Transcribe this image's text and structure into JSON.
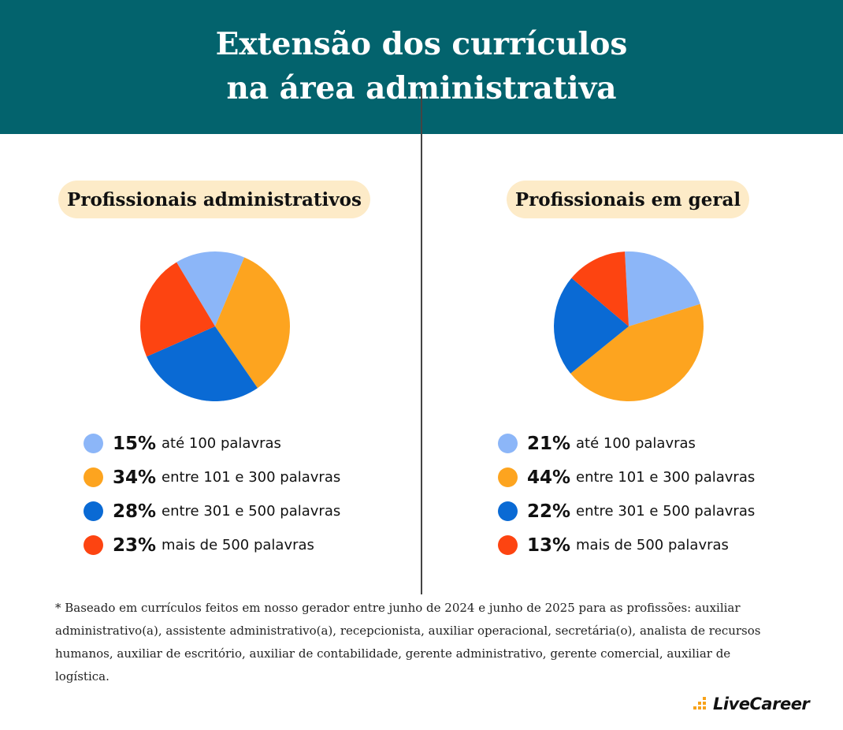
{
  "title": {
    "line1": "Extensão dos currículos",
    "line2": "na área administrativa"
  },
  "colors": {
    "header_bg": "#03636d",
    "pill_bg": "#fdebc8",
    "light_blue": "#8cb6f8",
    "orange": "#fda41f",
    "blue": "#0a6ad4",
    "red_orange": "#fd4411"
  },
  "chart_data": [
    {
      "type": "pie",
      "title": "Profissionais administrativos",
      "slices": [
        {
          "label": "até 100 palavras",
          "value": 15,
          "display": "15%",
          "color": "#8cb6f8"
        },
        {
          "label": "entre 101 e 300 palavras",
          "value": 34,
          "display": "34%",
          "color": "#fda41f"
        },
        {
          "label": "entre 301 e 500 palavras",
          "value": 28,
          "display": "28%",
          "color": "#0a6ad4"
        },
        {
          "label": "mais de 500 palavras",
          "value": 23,
          "display": "23%",
          "color": "#fd4411"
        }
      ]
    },
    {
      "type": "pie",
      "title": "Profissionais em geral",
      "slices": [
        {
          "label": "até 100 palavras",
          "value": 21,
          "display": "21%",
          "color": "#8cb6f8"
        },
        {
          "label": "entre 101 e 300 palavras",
          "value": 44,
          "display": "44%",
          "color": "#fda41f"
        },
        {
          "label": "entre 301 e 500 palavras",
          "value": 22,
          "display": "22%",
          "color": "#0a6ad4"
        },
        {
          "label": "mais de 500 palavras",
          "value": 13,
          "display": "13%",
          "color": "#fd4411"
        }
      ]
    }
  ],
  "footnote": {
    "line1": "* Baseado em currículos feitos em nosso gerador entre junho de 2024 e junho de 2025 para as profissões: auxiliar",
    "line2": "administrativo(a), assistente administrativo(a), recepcionista, auxiliar operacional, secretária(o), analista de recursos",
    "line3": "humanos, auxiliar de escritório, auxiliar de contabilidade, gerente administrativo, gerente comercial, auxiliar de logística."
  },
  "logo": {
    "text": "LiveCareer",
    "icon": "bar-chart-logo-icon"
  }
}
